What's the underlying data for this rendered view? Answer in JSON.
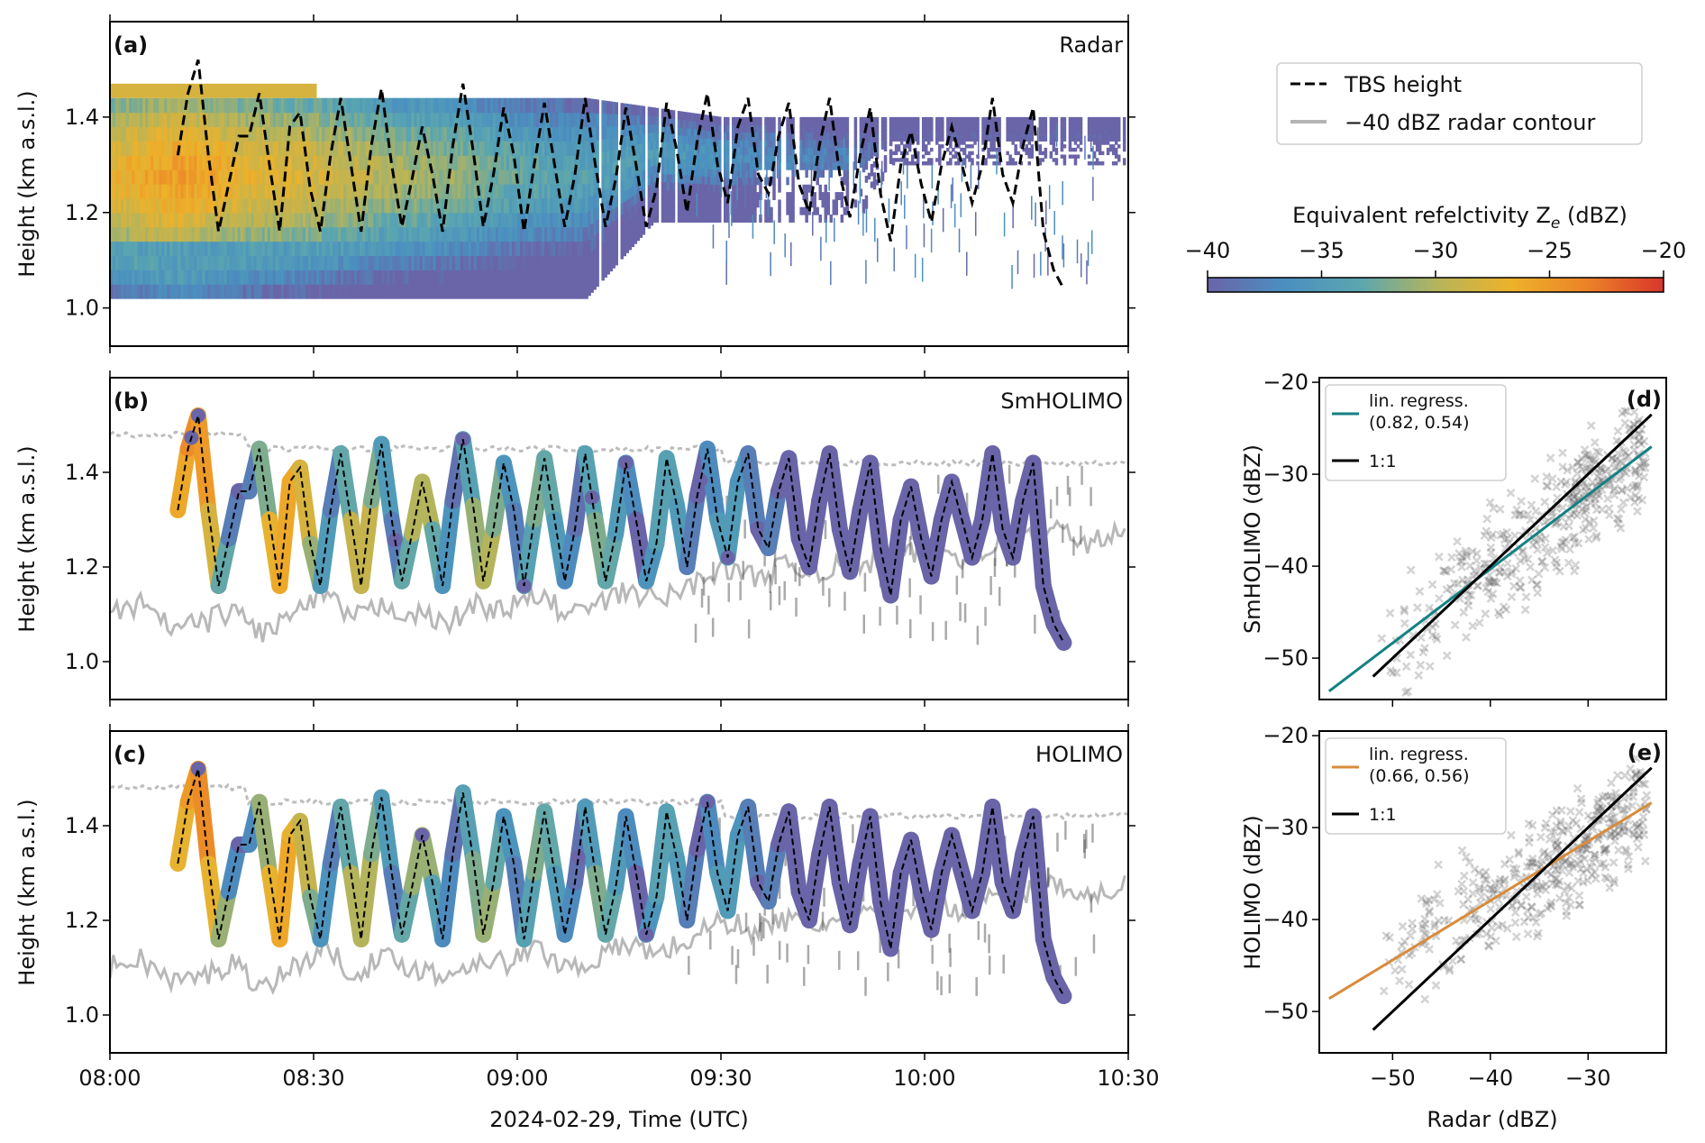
{
  "figure": {
    "shared_xlabel": "2024-02-29, Time (UTC)",
    "legend": {
      "tbs_label": "TBS height",
      "contour_label": "−40 dBZ radar contour"
    },
    "colorbar": {
      "label": "Equivalent refelctivity Z",
      "label_sub": "e",
      "label_unit": " (dBZ)",
      "ticks": [
        "−40",
        "−35",
        "−30",
        "−25",
        "−20"
      ],
      "range": [
        -40,
        -20
      ],
      "stops": [
        "#6a64a8",
        "#4a8fc0",
        "#5aa6b0",
        "#b4b45c",
        "#edb22a",
        "#ec8228",
        "#d8362a"
      ]
    }
  },
  "chart_data": [
    {
      "panel": "(a)",
      "name": "Radar",
      "type": "heatmap",
      "ylabel": "Height (km a.s.l.)",
      "ylim": [
        0.92,
        1.6
      ],
      "yticks": [
        "1.0",
        "1.2",
        "1.4"
      ],
      "xlim_minutes": [
        0,
        150
      ],
      "xticks": [
        "08:00",
        "08:30",
        "09:00",
        "09:30",
        "10:00",
        "10:30"
      ],
      "tbs_height": {
        "times": [
          10,
          11.5,
          13,
          14.5,
          16,
          17.5,
          19,
          20.5,
          22,
          23.5,
          25,
          26.5,
          28,
          29.5,
          31,
          32.5,
          34,
          35.5,
          37,
          38.5,
          40,
          41.5,
          43,
          44.5,
          46,
          47.5,
          49,
          50.5,
          52,
          53.5,
          55,
          56.5,
          58,
          59.5,
          61,
          62.5,
          64,
          65.5,
          67,
          68.5,
          70,
          71.5,
          73,
          74.5,
          76,
          77.5,
          79,
          80.5,
          82,
          83.5,
          85,
          86.5,
          88,
          89.5,
          91,
          92.5,
          94,
          95.5,
          97,
          98.5,
          100,
          101.5,
          103,
          104.5,
          106,
          107.5,
          109,
          110.5,
          112,
          113.5,
          115,
          116.5,
          118,
          119.5,
          121,
          122.5,
          124,
          125.5,
          127,
          128.5,
          130,
          131.5,
          133,
          134.5,
          136,
          137.5,
          139,
          140.5
        ],
        "heights": [
          1.32,
          1.45,
          1.52,
          1.32,
          1.16,
          1.26,
          1.36,
          1.36,
          1.45,
          1.3,
          1.16,
          1.38,
          1.41,
          1.25,
          1.16,
          1.32,
          1.44,
          1.3,
          1.16,
          1.34,
          1.46,
          1.3,
          1.17,
          1.27,
          1.38,
          1.28,
          1.16,
          1.34,
          1.47,
          1.33,
          1.17,
          1.28,
          1.42,
          1.32,
          1.16,
          1.3,
          1.43,
          1.3,
          1.17,
          1.28,
          1.44,
          1.3,
          1.17,
          1.27,
          1.42,
          1.3,
          1.17,
          1.25,
          1.43,
          1.33,
          1.2,
          1.35,
          1.45,
          1.3,
          1.22,
          1.38,
          1.44,
          1.28,
          1.24,
          1.36,
          1.43,
          1.26,
          1.2,
          1.34,
          1.44,
          1.28,
          1.19,
          1.32,
          1.42,
          1.24,
          1.14,
          1.3,
          1.37,
          1.26,
          1.18,
          1.3,
          1.38,
          1.3,
          1.22,
          1.3,
          1.44,
          1.28,
          1.22,
          1.34,
          1.42,
          1.16,
          1.08,
          1.04
        ]
      },
      "reflectivity_band": {
        "times": [
          0,
          10,
          20,
          30,
          40,
          50,
          60,
          70,
          80,
          90,
          100,
          110,
          115,
          120,
          130,
          140,
          150
        ],
        "top_km": [
          1.44,
          1.44,
          1.44,
          1.44,
          1.44,
          1.44,
          1.44,
          1.44,
          1.42,
          1.4,
          1.4,
          1.4,
          1.4,
          1.4,
          1.4,
          1.4,
          1.4
        ],
        "bottom_km": [
          1.02,
          1.02,
          1.02,
          1.02,
          1.02,
          1.02,
          1.02,
          1.02,
          1.18,
          1.18,
          1.18,
          1.18,
          1.3,
          1.3,
          1.3,
          1.3,
          1.3
        ],
        "core_dbz": [
          -27,
          -25,
          -27,
          -28,
          -30,
          -31,
          -33,
          -34,
          -35,
          -36,
          -37,
          -38,
          -40,
          -40,
          -40,
          -40,
          -40
        ]
      }
    },
    {
      "panel": "(b)",
      "name": "SmHOLIMO",
      "type": "line",
      "ylabel": "Height (km a.s.l.)",
      "ylim": [
        0.92,
        1.6
      ],
      "yticks": [
        "1.0",
        "1.2",
        "1.4"
      ],
      "xlim_minutes": [
        0,
        150
      ],
      "xticks": [
        "08:00",
        "08:30",
        "09:00",
        "09:30",
        "10:00",
        "10:30"
      ],
      "track_dbz": [
        -26,
        -24,
        -25,
        -28,
        -33,
        -38,
        -40,
        -38,
        -32,
        -27,
        -26,
        -26,
        -28,
        -31,
        -35,
        -38,
        -33,
        -29,
        -29,
        -32,
        -35,
        -38,
        -33,
        -30,
        -30,
        -33,
        -36,
        -39,
        -34,
        -31,
        -30,
        -32,
        -36,
        -38,
        -34,
        -32,
        -33,
        -35,
        -37,
        -39,
        -34,
        -32,
        -33,
        -35,
        -37,
        -40,
        -36,
        -34,
        -34,
        -35,
        -38,
        -40,
        -37,
        -35,
        -35,
        -36,
        -38,
        -40,
        -38,
        -40,
        -40,
        -40,
        -40,
        -40,
        -40,
        -40,
        -40,
        -40,
        -40,
        -40,
        -40,
        -40,
        -40,
        -40,
        -40,
        -40,
        -40,
        -40,
        -40,
        -40,
        -40,
        -40,
        -40,
        -40,
        -40,
        -40,
        -40,
        -40
      ],
      "track_end_minute": 140.5,
      "dots_minutes": [
        12,
        13,
        42,
        52,
        61,
        71,
        76,
        87,
        91,
        101,
        105,
        110,
        113,
        117,
        125,
        130,
        133,
        136,
        137,
        140
      ],
      "contour_lower_km": [
        1.1,
        1.12,
        1.07,
        1.08,
        1.11,
        1.06,
        1.1,
        1.14,
        1.09,
        1.12,
        1.1,
        1.08,
        1.12,
        1.11,
        1.14,
        1.1,
        1.12,
        1.15,
        1.13,
        1.16,
        1.2,
        1.18,
        1.2,
        1.19,
        1.2,
        1.21,
        1.22,
        1.24,
        1.22,
        1.25,
        1.26,
        1.28,
        1.25,
        1.27
      ],
      "contour_upper_km": 1.48
    },
    {
      "panel": "(c)",
      "name": "HOLIMO",
      "type": "line",
      "ylabel": "Height (km a.s.l.)",
      "ylim": [
        0.92,
        1.6
      ],
      "yticks": [
        "1.0",
        "1.2",
        "1.4"
      ],
      "xlim_minutes": [
        0,
        150
      ],
      "xticks": [
        "08:00",
        "08:30",
        "09:00",
        "09:30",
        "10:00",
        "10:30"
      ],
      "track_dbz": [
        -27,
        -25,
        -24,
        -27,
        -31,
        -37,
        -40,
        -37,
        -31,
        -27,
        -26,
        -27,
        -29,
        -32,
        -36,
        -38,
        -33,
        -30,
        -30,
        -32,
        -35,
        -38,
        -33,
        -31,
        -31,
        -34,
        -37,
        -39,
        -34,
        -32,
        -31,
        -33,
        -36,
        -38,
        -34,
        -32,
        -33,
        -35,
        -37,
        -39,
        -35,
        -32,
        -33,
        -35,
        -37,
        -40,
        -36,
        -34,
        -34,
        -35,
        -38,
        -40,
        -37,
        -35,
        -35,
        -36,
        -38,
        -40,
        -38,
        -40,
        -40,
        -40,
        -40,
        -40,
        -40,
        -40,
        -40,
        -40,
        -40,
        -40,
        -40,
        -40,
        -40,
        -40,
        -40,
        -40,
        -40,
        -40,
        -40,
        -40,
        -40,
        -40,
        -40,
        -40,
        -40,
        -40,
        -40,
        -40
      ],
      "track_end_minute": 140.5,
      "dots_minutes": [
        13,
        46,
        69,
        79,
        88,
        110,
        113,
        120,
        124,
        129,
        132,
        135,
        139,
        140
      ],
      "contour_lower_km": [
        1.1,
        1.12,
        1.07,
        1.08,
        1.11,
        1.06,
        1.1,
        1.14,
        1.09,
        1.12,
        1.1,
        1.08,
        1.12,
        1.11,
        1.14,
        1.1,
        1.12,
        1.15,
        1.13,
        1.16,
        1.2,
        1.18,
        1.2,
        1.19,
        1.2,
        1.21,
        1.22,
        1.24,
        1.22,
        1.25,
        1.26,
        1.28,
        1.25,
        1.27
      ],
      "contour_upper_km": 1.48
    },
    {
      "panel": "(d)",
      "type": "scatter",
      "xlabel": "",
      "ylabel": "SmHOLIMO (dBZ)",
      "xlim": [
        -57.5,
        -22
      ],
      "ylim": [
        -54.5,
        -19.5
      ],
      "xticks": [
        "−50",
        "−40",
        "−30"
      ],
      "yticks": [
        "−20",
        "−30",
        "−40",
        "−50"
      ],
      "legend_regress": "lin. regress.",
      "legend_params": "(0.82, 0.54)",
      "legend_one": "1:1",
      "regression": {
        "x": [
          -56.5,
          -23.5
        ],
        "y": [
          -53.6,
          -27.0
        ],
        "color": "#138184"
      },
      "one_to_one": {
        "x": [
          -52,
          -23.5
        ],
        "y": [
          -52,
          -23.5
        ]
      },
      "scatter_cloud": {
        "x_range": [
          -52,
          -24
        ],
        "fit_slope": 0.82
      }
    },
    {
      "panel": "(e)",
      "type": "scatter",
      "xlabel": "Radar (dBZ)",
      "ylabel": "HOLIMO (dBZ)",
      "xlim": [
        -57.5,
        -22
      ],
      "ylim": [
        -54.5,
        -19.5
      ],
      "xticks": [
        "−50",
        "−40",
        "−30"
      ],
      "yticks": [
        "−20",
        "−30",
        "−40",
        "−50"
      ],
      "legend_regress": "lin. regress.",
      "legend_params": "(0.66, 0.56)",
      "legend_one": "1:1",
      "regression": {
        "x": [
          -56.5,
          -23.5
        ],
        "y": [
          -48.6,
          -27.3
        ],
        "color": "#d98b3a"
      },
      "one_to_one": {
        "x": [
          -52,
          -23.5
        ],
        "y": [
          -52,
          -23.5
        ]
      },
      "scatter_cloud": {
        "x_range": [
          -52,
          -24
        ],
        "fit_slope": 0.66
      }
    }
  ]
}
